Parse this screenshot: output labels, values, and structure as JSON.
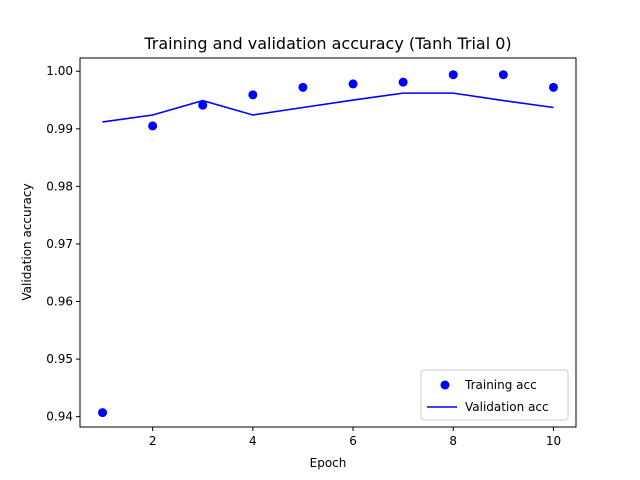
{
  "chart_data": {
    "type": "line",
    "title": "Training and validation accuracy (Tanh Trial 0)",
    "xlabel": "Epoch",
    "ylabel": "Validation accuracy",
    "xlim": [
      0.55,
      10.45
    ],
    "ylim": [
      0.9382,
      1.0023
    ],
    "xticks": [
      2,
      4,
      6,
      8,
      10
    ],
    "yticks": [
      0.94,
      0.95,
      0.96,
      0.97,
      0.98,
      0.99,
      1.0
    ],
    "ytick_labels": [
      "0.94",
      "0.95",
      "0.96",
      "0.97",
      "0.98",
      "0.99",
      "1.00"
    ],
    "grid": false,
    "legend_position": "lower-right",
    "x": [
      1,
      2,
      3,
      4,
      5,
      6,
      7,
      8,
      9,
      10
    ],
    "series": [
      {
        "name": "Training acc",
        "style": "scatter",
        "color": "#0000ff",
        "values": [
          0.9407,
          0.9905,
          0.9941,
          0.9959,
          0.9972,
          0.9978,
          0.9981,
          0.9994,
          0.9994,
          0.9972
        ]
      },
      {
        "name": "Validation acc",
        "style": "line",
        "color": "#0000ff",
        "values": [
          0.9912,
          0.9924,
          0.9949,
          0.9924,
          0.9937,
          0.995,
          0.9962,
          0.9962,
          0.9949,
          0.9937
        ]
      }
    ]
  }
}
